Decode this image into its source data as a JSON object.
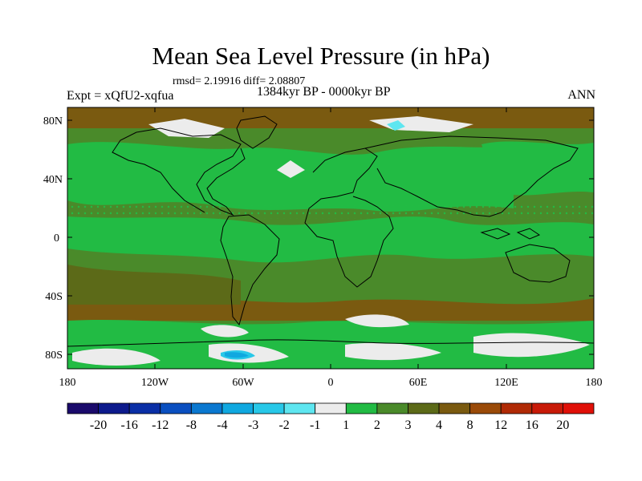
{
  "title": "Mean Sea Level Pressure (in hPa)",
  "stats": "rmsd= 2.19916 diff= 2.08807",
  "experiment": "Expt = xQfU2-xqfua",
  "period": "1384kyr BP - 0000kyr BP",
  "season": "ANN",
  "lat_ticks": [
    "80N",
    "40N",
    "0",
    "40S",
    "80S"
  ],
  "lon_ticks": [
    "180",
    "120W",
    "60W",
    "0",
    "60E",
    "120E",
    "180"
  ],
  "colorbar": {
    "labels": [
      "-20",
      "-16",
      "-12",
      "-8",
      "-4",
      "-3",
      "-2",
      "-1",
      "1",
      "2",
      "3",
      "4",
      "8",
      "12",
      "16",
      "20"
    ],
    "colors": [
      "#1a0a6b",
      "#0d1a8c",
      "#0a2fa6",
      "#0a4fc0",
      "#0a78d0",
      "#10a8e0",
      "#28c8e8",
      "#5ee6f0",
      "#ececec",
      "#22bb44",
      "#4a8a2a",
      "#5c6a18",
      "#7a5a10",
      "#9a4a08",
      "#b02a05",
      "#c81a08",
      "#e01008"
    ]
  }
}
